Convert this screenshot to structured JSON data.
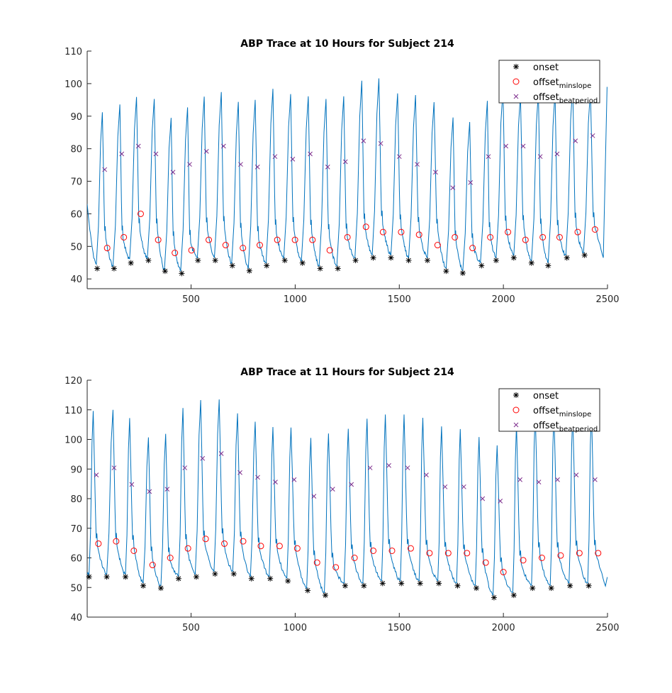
{
  "chart_data": [
    {
      "type": "line",
      "title": "ABP Trace at 10 Hours for Subject 214",
      "xlabel": "",
      "ylabel": "",
      "xlim": [
        1,
        2500
      ],
      "ylim": [
        37,
        110
      ],
      "xticks": [
        500,
        1000,
        1500,
        2000,
        2500
      ],
      "yticks": [
        40,
        50,
        60,
        70,
        80,
        90,
        100,
        110
      ],
      "xtick_labels": [
        "500",
        "1000",
        "1500",
        "2000",
        "2500"
      ],
      "ytick_labels": [
        "40",
        "50",
        "60",
        "70",
        "80",
        "90",
        "100",
        "110"
      ],
      "legend_position": "top-right",
      "trace": {
        "start": [
          1,
          63
        ],
        "beats": [
          {
            "on": 45,
            "on_v": 44.5,
            "peak": 74,
            "peak_v": 91.2
          },
          {
            "on": 125,
            "on_v": 44.0,
            "peak": 158,
            "peak_v": 93.6
          },
          {
            "on": 205,
            "on_v": 46.2,
            "peak": 238,
            "peak_v": 95.9
          },
          {
            "on": 290,
            "on_v": 46.3,
            "peak": 323,
            "peak_v": 95.3
          },
          {
            "on": 372,
            "on_v": 43.0,
            "peak": 404,
            "peak_v": 89.5
          },
          {
            "on": 450,
            "on_v": 42.5,
            "peak": 483,
            "peak_v": 92.7
          },
          {
            "on": 530,
            "on_v": 46.5,
            "peak": 563,
            "peak_v": 96.0
          },
          {
            "on": 612,
            "on_v": 46.6,
            "peak": 645,
            "peak_v": 97.4
          },
          {
            "on": 695,
            "on_v": 44.8,
            "peak": 727,
            "peak_v": 94.4
          },
          {
            "on": 775,
            "on_v": 43.3,
            "peak": 808,
            "peak_v": 95.0
          },
          {
            "on": 860,
            "on_v": 44.9,
            "peak": 893,
            "peak_v": 98.4
          },
          {
            "on": 945,
            "on_v": 46.4,
            "peak": 978,
            "peak_v": 96.8
          },
          {
            "on": 1030,
            "on_v": 45.5,
            "peak": 1063,
            "peak_v": 96.1
          },
          {
            "on": 1115,
            "on_v": 44.0,
            "peak": 1148,
            "peak_v": 95.3
          },
          {
            "on": 1200,
            "on_v": 44.0,
            "peak": 1233,
            "peak_v": 96.1
          },
          {
            "on": 1287,
            "on_v": 46.5,
            "peak": 1320,
            "peak_v": 100.9
          },
          {
            "on": 1370,
            "on_v": 47.4,
            "peak": 1402,
            "peak_v": 101.6
          },
          {
            "on": 1460,
            "on_v": 47.4,
            "peak": 1492,
            "peak_v": 97.0
          },
          {
            "on": 1545,
            "on_v": 46.5,
            "peak": 1578,
            "peak_v": 96.5
          },
          {
            "on": 1635,
            "on_v": 46.5,
            "peak": 1667,
            "peak_v": 94.3
          },
          {
            "on": 1725,
            "on_v": 43.3,
            "peak": 1758,
            "peak_v": 89.6
          },
          {
            "on": 1805,
            "on_v": 42.6,
            "peak": 1838,
            "peak_v": 88.2
          },
          {
            "on": 1890,
            "on_v": 45.0,
            "peak": 1923,
            "peak_v": 94.7
          },
          {
            "on": 1965,
            "on_v": 46.5,
            "peak": 1998,
            "peak_v": 98.3
          },
          {
            "on": 2050,
            "on_v": 47.2,
            "peak": 2082,
            "peak_v": 96.7
          },
          {
            "on": 2135,
            "on_v": 45.5,
            "peak": 2168,
            "peak_v": 97.6
          },
          {
            "on": 2215,
            "on_v": 45.0,
            "peak": 2248,
            "peak_v": 97.4
          },
          {
            "on": 2300,
            "on_v": 47.4,
            "peak": 2333,
            "peak_v": 99.2
          },
          {
            "on": 2385,
            "on_v": 48.0,
            "peak": 2418,
            "peak_v": 97.8
          }
        ],
        "end": [
          2480,
          46.5
        ],
        "final_peak": [
          2498,
          99
        ]
      },
      "series": [
        {
          "name": "onset",
          "marker": "asterisk",
          "color": "#000000",
          "x": [
            49,
            130,
            211,
            295,
            375,
            455,
            533,
            616,
            698,
            780,
            863,
            950,
            1035,
            1120,
            1205,
            1290,
            1375,
            1460,
            1545,
            1635,
            1725,
            1805,
            1895,
            1965,
            2050,
            2135,
            2215,
            2305,
            2390
          ],
          "y": [
            43.2,
            43.2,
            44.9,
            45.7,
            42.4,
            41.7,
            45.7,
            45.7,
            44.1,
            42.5,
            44.1,
            45.7,
            44.9,
            43.2,
            43.2,
            45.7,
            46.5,
            46.5,
            45.7,
            45.7,
            42.4,
            41.8,
            44.1,
            45.7,
            46.5,
            44.9,
            44.1,
            46.5,
            47.3
          ]
        },
        {
          "name": "offset_minslope",
          "label_main": "offset",
          "label_sub": "minslope",
          "marker": "circle",
          "color": "#ff0000",
          "x": [
            97,
            177,
            258,
            342,
            422,
            502,
            585,
            666,
            749,
            830,
            914,
            999,
            1083,
            1166,
            1251,
            1340,
            1422,
            1509,
            1595,
            1684,
            1767,
            1852,
            1937,
            2022,
            2106,
            2189,
            2270,
            2357,
            2440
          ],
          "y": [
            49.5,
            52.8,
            60.0,
            52.0,
            48.0,
            48.8,
            52.0,
            50.4,
            49.5,
            50.4,
            52.0,
            52.0,
            52.0,
            48.8,
            52.8,
            56.0,
            54.4,
            54.4,
            53.6,
            50.4,
            52.8,
            49.5,
            52.8,
            54.4,
            52.0,
            52.8,
            52.8,
            54.4,
            55.2
          ]
        },
        {
          "name": "offset_beatperiod",
          "label_main": "offset",
          "label_sub": "beatperiod",
          "marker": "x",
          "color": "#7e2f8e",
          "x": [
            85,
            167,
            247,
            331,
            413,
            493,
            574,
            656,
            738,
            819,
            903,
            988,
            1072,
            1156,
            1241,
            1328,
            1411,
            1500,
            1586,
            1674,
            1757,
            1842,
            1928,
            2012,
            2095,
            2177,
            2258,
            2346,
            2429
          ],
          "y": [
            73.6,
            78.4,
            80.8,
            78.4,
            72.8,
            75.2,
            79.2,
            80.8,
            75.2,
            74.4,
            77.6,
            76.8,
            78.4,
            74.4,
            76.0,
            82.4,
            81.6,
            77.6,
            75.2,
            72.8,
            68.0,
            69.6,
            77.6,
            80.8,
            80.8,
            77.6,
            78.4,
            82.4,
            84.0
          ]
        }
      ]
    },
    {
      "type": "line",
      "title": "ABP Trace at 11 Hours for Subject 214",
      "xlabel": "",
      "ylabel": "",
      "xlim": [
        1,
        2500
      ],
      "ylim": [
        40,
        120
      ],
      "xticks": [
        500,
        1000,
        1500,
        2000,
        2500
      ],
      "yticks": [
        40,
        50,
        60,
        70,
        80,
        90,
        100,
        110,
        120
      ],
      "xtick_labels": [
        "500",
        "1000",
        "1500",
        "2000",
        "2500"
      ],
      "ytick_labels": [
        "40",
        "50",
        "60",
        "70",
        "80",
        "90",
        "100",
        "110",
        "120"
      ],
      "legend_position": "top-right",
      "trace": {
        "start": [
          1,
          55
        ],
        "beats": [
          {
            "on": 10,
            "on_v": 54.5,
            "peak": 30,
            "peak_v": 109.6
          },
          {
            "on": 95,
            "on_v": 54.5,
            "peak": 125,
            "peak_v": 110.0
          },
          {
            "on": 185,
            "on_v": 54.5,
            "peak": 205,
            "peak_v": 107.2
          },
          {
            "on": 270,
            "on_v": 51.5,
            "peak": 295,
            "peak_v": 100.7
          },
          {
            "on": 355,
            "on_v": 50.7,
            "peak": 378,
            "peak_v": 101.9
          },
          {
            "on": 440,
            "on_v": 53.8,
            "peak": 461,
            "peak_v": 110.6
          },
          {
            "on": 520,
            "on_v": 54.5,
            "peak": 546,
            "peak_v": 113.3
          },
          {
            "on": 610,
            "on_v": 55.5,
            "peak": 635,
            "peak_v": 113.5
          },
          {
            "on": 700,
            "on_v": 55.5,
            "peak": 723,
            "peak_v": 108.8
          },
          {
            "on": 785,
            "on_v": 53.8,
            "peak": 808,
            "peak_v": 106.0
          },
          {
            "on": 875,
            "on_v": 53.8,
            "peak": 893,
            "peak_v": 104.2
          },
          {
            "on": 960,
            "on_v": 53.2,
            "peak": 980,
            "peak_v": 104.0
          },
          {
            "on": 1055,
            "on_v": 49.8,
            "peak": 1075,
            "peak_v": 100.5
          },
          {
            "on": 1140,
            "on_v": 48.3,
            "peak": 1160,
            "peak_v": 102.0
          },
          {
            "on": 1235,
            "on_v": 51.5,
            "peak": 1255,
            "peak_v": 103.6
          },
          {
            "on": 1325,
            "on_v": 51.5,
            "peak": 1345,
            "peak_v": 107.0
          },
          {
            "on": 1415,
            "on_v": 52.3,
            "peak": 1433,
            "peak_v": 108.4
          },
          {
            "on": 1505,
            "on_v": 52.3,
            "peak": 1523,
            "peak_v": 108.4
          },
          {
            "on": 1595,
            "on_v": 52.3,
            "peak": 1613,
            "peak_v": 107.3
          },
          {
            "on": 1685,
            "on_v": 52.3,
            "peak": 1703,
            "peak_v": 104.4
          },
          {
            "on": 1775,
            "on_v": 51.5,
            "peak": 1793,
            "peak_v": 103.5
          },
          {
            "on": 1865,
            "on_v": 50.7,
            "peak": 1883,
            "peak_v": 100.8
          },
          {
            "on": 1950,
            "on_v": 47.5,
            "peak": 1970,
            "peak_v": 98.0
          },
          {
            "on": 2045,
            "on_v": 48.3,
            "peak": 2063,
            "peak_v": 105.0
          },
          {
            "on": 2135,
            "on_v": 50.7,
            "peak": 2153,
            "peak_v": 109.1
          },
          {
            "on": 2225,
            "on_v": 50.7,
            "peak": 2243,
            "peak_v": 109.0
          },
          {
            "on": 2315,
            "on_v": 51.5,
            "peak": 2333,
            "peak_v": 108.9
          },
          {
            "on": 2405,
            "on_v": 51.5,
            "peak": 2423,
            "peak_v": 109.7
          }
        ],
        "end": [
          2490,
          50.5
        ],
        "final_peak": [
          2499,
          53.5
        ]
      },
      "series": [
        {
          "name": "onset",
          "marker": "asterisk",
          "color": "#000000",
          "x": [
            10,
            95,
            185,
            270,
            355,
            440,
            525,
            615,
            705,
            790,
            880,
            965,
            1060,
            1145,
            1240,
            1330,
            1420,
            1510,
            1600,
            1690,
            1780,
            1870,
            1955,
            2050,
            2140,
            2230,
            2320,
            2410
          ],
          "y": [
            53.6,
            53.6,
            53.6,
            50.6,
            49.8,
            53.0,
            53.6,
            54.6,
            54.6,
            53.0,
            53.0,
            52.2,
            49.0,
            47.4,
            50.6,
            50.6,
            51.4,
            51.4,
            51.4,
            51.4,
            50.6,
            49.8,
            46.6,
            47.4,
            49.8,
            49.8,
            50.6,
            50.6
          ]
        },
        {
          "name": "offset_minslope",
          "label_main": "offset",
          "label_sub": "minslope",
          "marker": "circle",
          "color": "#ff0000",
          "x": [
            55,
            140,
            225,
            315,
            400,
            485,
            570,
            660,
            750,
            835,
            925,
            1010,
            1105,
            1195,
            1285,
            1375,
            1465,
            1555,
            1645,
            1735,
            1825,
            1915,
            2000,
            2095,
            2185,
            2275,
            2365,
            2455
          ],
          "y": [
            64.8,
            65.6,
            62.4,
            57.6,
            60.0,
            63.2,
            66.4,
            64.8,
            65.6,
            64.0,
            64.0,
            63.2,
            58.4,
            56.8,
            60.0,
            62.4,
            62.4,
            63.2,
            61.6,
            61.6,
            61.6,
            58.4,
            55.2,
            59.2,
            60.0,
            60.8,
            61.6,
            61.6
          ]
        },
        {
          "name": "offset_beatperiod",
          "label_main": "offset",
          "label_sub": "beatperiod",
          "marker": "x",
          "color": "#7e2f8e",
          "x": [
            45,
            130,
            215,
            300,
            385,
            470,
            555,
            645,
            735,
            820,
            905,
            995,
            1090,
            1180,
            1270,
            1360,
            1450,
            1540,
            1630,
            1720,
            1810,
            1900,
            1985,
            2080,
            2170,
            2260,
            2350,
            2440
          ],
          "y": [
            88.0,
            90.4,
            84.8,
            82.4,
            83.2,
            90.4,
            93.6,
            95.2,
            88.8,
            87.2,
            85.6,
            86.4,
            80.8,
            83.2,
            84.8,
            90.4,
            91.2,
            90.4,
            88.0,
            84.0,
            84.0,
            80.0,
            79.2,
            86.4,
            85.6,
            86.4,
            88.0,
            86.4
          ]
        }
      ]
    }
  ],
  "colors": {
    "trace": "#0072bd",
    "axis": "#262626"
  }
}
